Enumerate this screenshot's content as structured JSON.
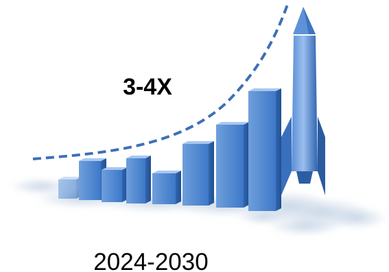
{
  "headline": "3-4X",
  "period": "2024-2030"
}
